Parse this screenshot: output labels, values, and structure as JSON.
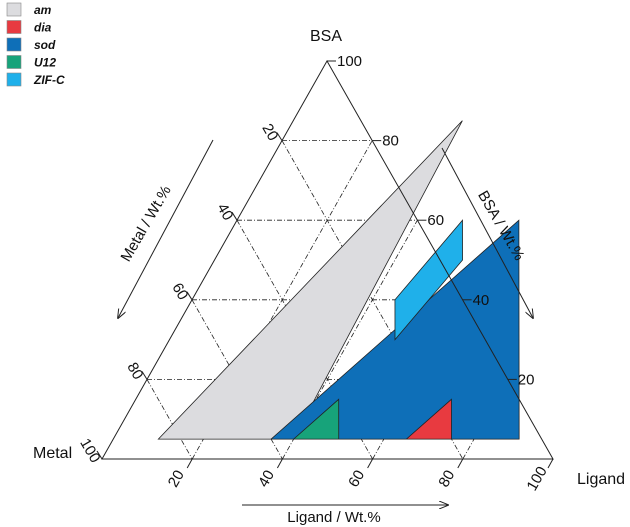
{
  "chart_data": {
    "type": "ternary",
    "corners": {
      "top": "BSA",
      "left": "Metal",
      "right": "Ligand"
    },
    "axis_titles": {
      "metal": "Metal / Wt.%",
      "ligand": "Ligand / Wt.%",
      "bsa": "BSA / Wt.%"
    },
    "ticks": {
      "ligand": [
        "20",
        "40",
        "60",
        "80",
        "100"
      ],
      "bsa": [
        "20",
        "40",
        "60",
        "80",
        "100"
      ],
      "metal": [
        "20",
        "40",
        "60",
        "80",
        "100"
      ]
    },
    "tick_values": [
      20,
      40,
      60,
      80,
      100
    ],
    "legend": [
      {
        "label": "am",
        "color": "#dcdcdf"
      },
      {
        "label": "dia",
        "color": "#e83a40"
      },
      {
        "label": "sod",
        "color": "#0e6fb8"
      },
      {
        "label": "U12",
        "color": "#17a37a"
      },
      {
        "label": "ZIF-C",
        "color": "#1fb0ea"
      }
    ],
    "regions": [
      {
        "name": "am",
        "color": "#dcdcdf",
        "vertices": [
          {
            "ligand": 10,
            "bsa": 5
          },
          {
            "ligand": 40,
            "bsa": 5
          },
          {
            "ligand": 37.5,
            "bsa": 85
          }
        ]
      },
      {
        "name": "sod",
        "color": "#0e6fb8",
        "vertices": [
          {
            "ligand": 35,
            "bsa": 5
          },
          {
            "ligand": 90,
            "bsa": 5
          },
          {
            "ligand": 62.5,
            "bsa": 60
          }
        ]
      },
      {
        "name": "ZIF-C",
        "color": "#1fb0ea",
        "vertices": [
          {
            "ligand": 50,
            "bsa": 60
          },
          {
            "ligand": 55,
            "bsa": 50
          },
          {
            "ligand": 50,
            "bsa": 30
          },
          {
            "ligand": 45,
            "bsa": 40
          }
        ]
      },
      {
        "name": "U12",
        "color": "#17a37a",
        "vertices": [
          {
            "ligand": 40,
            "bsa": 5
          },
          {
            "ligand": 50,
            "bsa": 5
          },
          {
            "ligand": 45,
            "bsa": 15
          }
        ]
      },
      {
        "name": "dia",
        "color": "#e83a40",
        "vertices": [
          {
            "ligand": 65,
            "bsa": 5
          },
          {
            "ligand": 75,
            "bsa": 5
          },
          {
            "ligand": 70,
            "bsa": 15
          }
        ]
      }
    ]
  }
}
